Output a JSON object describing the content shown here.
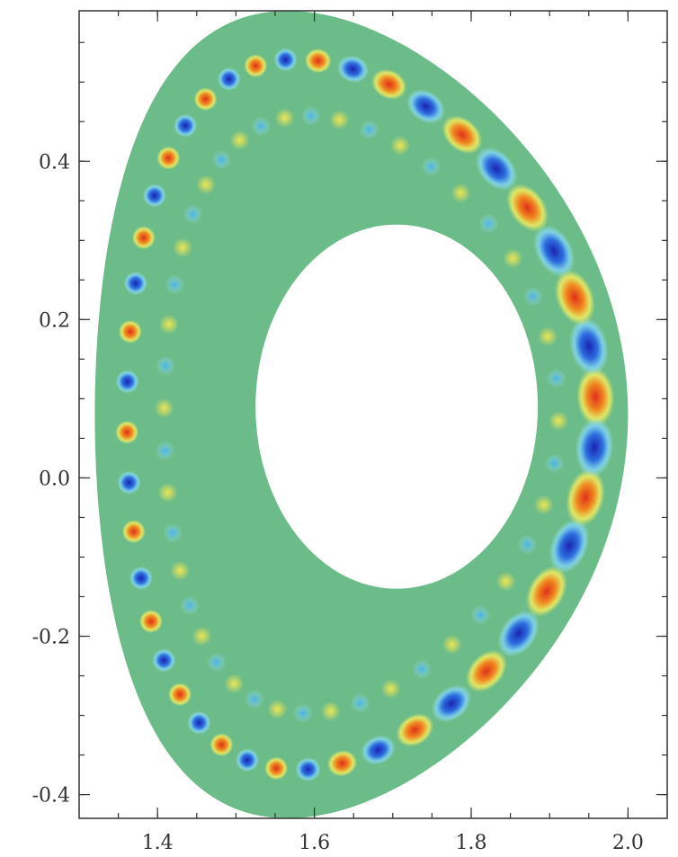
{
  "chart_data": {
    "type": "heatmap",
    "title": "",
    "xlabel": "",
    "ylabel": "",
    "xlim": [
      1.3,
      2.05
    ],
    "ylim": [
      -0.43,
      0.59
    ],
    "x_ticks": [
      1.4,
      1.6,
      1.8,
      2.0
    ],
    "x_tick_labels": [
      "1.4",
      "1.6",
      "1.8",
      "2.0"
    ],
    "y_ticks": [
      0.4,
      0.2,
      0.0,
      -0.2,
      -0.4
    ],
    "y_tick_labels": [
      "0.4",
      "0.2",
      "0.0",
      "-0.2",
      "-0.4"
    ],
    "grid": false,
    "description_of_field": "poloidal cross-section of a mode structure; alternating positive (red) and negative (blue) lobes along the outer edge of a D-shaped annular plasma domain, zero field shown in green",
    "domain": {
      "center": [
        1.66,
        0.08
      ],
      "outer_half_width": 0.34,
      "outer_half_height": 0.51,
      "inner_center": [
        1.705,
        0.09
      ],
      "inner_half_width": 0.18,
      "inner_half_height": 0.23
    },
    "modes": {
      "outer_lobe_count": 44,
      "colorscale": [
        "#1e2fbf",
        "#3aa0f0",
        "#9fe6f2",
        "#6cbc8a",
        "#f2ee60",
        "#f4a11f",
        "#e0301a"
      ],
      "zero_color": "#6cbc8a"
    }
  }
}
